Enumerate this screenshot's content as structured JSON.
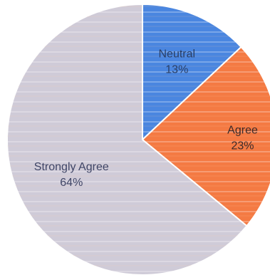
{
  "chart_data": {
    "type": "pie",
    "categories": [
      "Neutral",
      "Agree",
      "Strongly Agree"
    ],
    "values": [
      13,
      23,
      64
    ],
    "value_labels": [
      "13%",
      "23%",
      "64%"
    ],
    "colors": {
      "Neutral": "#4a86e0",
      "Agree": "#f47a43",
      "Strongly Agree": "#cfcbd8"
    },
    "label_colors": {
      "Neutral": "#2a3f66",
      "Agree": "#3a2a2a",
      "Strongly Agree": "#3f4566"
    },
    "start_angle_deg": 0,
    "direction": "clockwise",
    "legend": "none",
    "title": ""
  }
}
